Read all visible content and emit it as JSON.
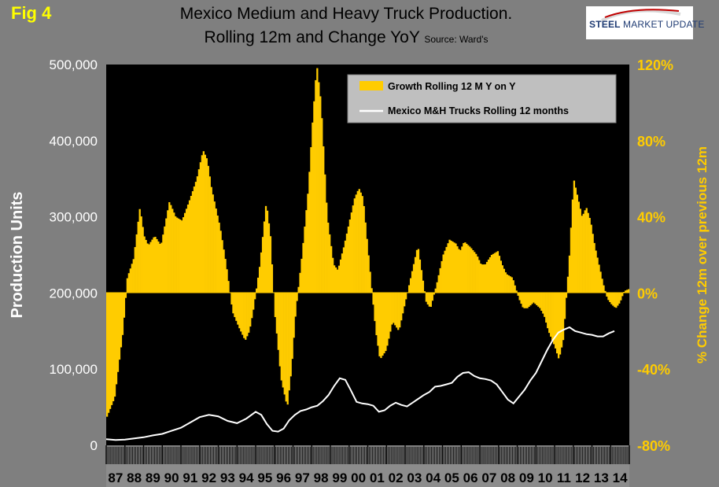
{
  "figure_label": "Fig 4",
  "title_line1": "Mexico Medium and Heavy Truck Production.",
  "title_line2": "Rolling 12m and Change YoY",
  "source": "Source: Ward's",
  "logo": {
    "bold": "STEEL",
    "rest": "MARKET UPDATE"
  },
  "colors": {
    "bars": "#ffcc00",
    "line": "#ffffff",
    "plot_bg": "#000000",
    "page_bg": "#7f7f7f",
    "right_axis_text": "#ffcc00",
    "left_axis_text": "#ffffff"
  },
  "chart_data": {
    "type": "bar+line",
    "ylabel_left": "Production Units",
    "ylabel_right": "% Change 12m over previous 12m",
    "ylim_left": [
      0,
      500000
    ],
    "ylim_right": [
      -80,
      120
    ],
    "left_ticks": [
      "0",
      "100,000",
      "200,000",
      "300,000",
      "400,000",
      "500,000"
    ],
    "right_ticks": [
      "-80%",
      "-40%",
      "0%",
      "40%",
      "80%",
      "120%"
    ],
    "x_tick_labels": [
      "87",
      "88",
      "89",
      "90",
      "91",
      "92",
      "93",
      "94",
      "95",
      "96",
      "97",
      "98",
      "99",
      "00",
      "01",
      "02",
      "03",
      "04",
      "05",
      "06",
      "07",
      "08",
      "09",
      "10",
      "11",
      "12",
      "13",
      "14"
    ],
    "legend": {
      "position": "top-right",
      "bars_label": "Growth Rolling 12 M Y on Y",
      "line_label": "Mexico M&H Trucks Rolling 12 months"
    },
    "growth_pct": [
      [
        1987.0,
        -66
      ],
      [
        1987.4,
        -55
      ],
      [
        1987.8,
        -20
      ],
      [
        1988.0,
        8
      ],
      [
        1988.3,
        18
      ],
      [
        1988.6,
        45
      ],
      [
        1988.8,
        30
      ],
      [
        1989.0,
        25
      ],
      [
        1989.3,
        30
      ],
      [
        1989.6,
        25
      ],
      [
        1990.0,
        48
      ],
      [
        1990.3,
        40
      ],
      [
        1990.6,
        38
      ],
      [
        1991.0,
        50
      ],
      [
        1991.3,
        60
      ],
      [
        1991.6,
        75
      ],
      [
        1991.8,
        70
      ],
      [
        1992.0,
        55
      ],
      [
        1992.4,
        35
      ],
      [
        1992.7,
        15
      ],
      [
        1993.0,
        -10
      ],
      [
        1993.3,
        -18
      ],
      [
        1993.6,
        -25
      ],
      [
        1993.8,
        -20
      ],
      [
        1994.0,
        -8
      ],
      [
        1994.3,
        15
      ],
      [
        1994.6,
        48
      ],
      [
        1994.8,
        30
      ],
      [
        1995.0,
        -10
      ],
      [
        1995.3,
        -45
      ],
      [
        1995.6,
        -60
      ],
      [
        1995.8,
        -40
      ],
      [
        1996.0,
        -10
      ],
      [
        1996.3,
        20
      ],
      [
        1996.6,
        55
      ],
      [
        1996.8,
        90
      ],
      [
        1997.0,
        120
      ],
      [
        1997.2,
        100
      ],
      [
        1997.5,
        40
      ],
      [
        1997.8,
        15
      ],
      [
        1998.0,
        12
      ],
      [
        1998.3,
        25
      ],
      [
        1998.6,
        40
      ],
      [
        1998.8,
        50
      ],
      [
        1999.0,
        55
      ],
      [
        1999.2,
        50
      ],
      [
        1999.5,
        15
      ],
      [
        1999.8,
        -20
      ],
      [
        2000.0,
        -35
      ],
      [
        2000.3,
        -30
      ],
      [
        2000.6,
        -15
      ],
      [
        2000.9,
        -20
      ],
      [
        2001.0,
        -15
      ],
      [
        2001.3,
        0
      ],
      [
        2001.6,
        15
      ],
      [
        2001.8,
        25
      ],
      [
        2002.0,
        10
      ],
      [
        2002.2,
        -5
      ],
      [
        2002.4,
        -8
      ],
      [
        2002.7,
        5
      ],
      [
        2003.0,
        20
      ],
      [
        2003.3,
        28
      ],
      [
        2003.6,
        26
      ],
      [
        2003.8,
        22
      ],
      [
        2004.0,
        27
      ],
      [
        2004.3,
        24
      ],
      [
        2004.6,
        20
      ],
      [
        2004.8,
        15
      ],
      [
        2005.0,
        15
      ],
      [
        2005.3,
        20
      ],
      [
        2005.6,
        22
      ],
      [
        2005.8,
        15
      ],
      [
        2006.0,
        10
      ],
      [
        2006.3,
        8
      ],
      [
        2006.6,
        -3
      ],
      [
        2006.8,
        -8
      ],
      [
        2007.0,
        -8
      ],
      [
        2007.3,
        -5
      ],
      [
        2007.6,
        -8
      ],
      [
        2007.8,
        -12
      ],
      [
        2008.0,
        -20
      ],
      [
        2008.3,
        -28
      ],
      [
        2008.5,
        -35
      ],
      [
        2008.7,
        -25
      ],
      [
        2008.9,
        5
      ],
      [
        2009.0,
        20
      ],
      [
        2009.2,
        60
      ],
      [
        2009.4,
        50
      ],
      [
        2009.6,
        40
      ],
      [
        2009.8,
        45
      ],
      [
        2010.0,
        38
      ],
      [
        2010.2,
        25
      ],
      [
        2010.4,
        15
      ],
      [
        2010.6,
        5
      ],
      [
        2010.8,
        -3
      ],
      [
        2011.0,
        -6
      ],
      [
        2011.2,
        -8
      ],
      [
        2011.4,
        -5
      ],
      [
        2011.6,
        1
      ],
      [
        2011.8,
        2
      ]
    ],
    "production_units": [
      [
        1987.0,
        8000
      ],
      [
        1987.5,
        7000
      ],
      [
        1988.0,
        7500
      ],
      [
        1988.5,
        9000
      ],
      [
        1989.0,
        10500
      ],
      [
        1989.5,
        13000
      ],
      [
        1990.0,
        15000
      ],
      [
        1990.5,
        19000
      ],
      [
        1991.0,
        23000
      ],
      [
        1991.5,
        30000
      ],
      [
        1992.0,
        37000
      ],
      [
        1992.5,
        40000
      ],
      [
        1993.0,
        38000
      ],
      [
        1993.5,
        32000
      ],
      [
        1994.0,
        29000
      ],
      [
        1994.5,
        35000
      ],
      [
        1995.0,
        44000
      ],
      [
        1995.3,
        40000
      ],
      [
        1995.6,
        28000
      ],
      [
        1995.9,
        19000
      ],
      [
        1996.2,
        18000
      ],
      [
        1996.5,
        22000
      ],
      [
        1996.8,
        33000
      ],
      [
        1997.1,
        40000
      ],
      [
        1997.4,
        45000
      ],
      [
        1997.7,
        47000
      ],
      [
        1998.0,
        50000
      ],
      [
        1998.3,
        52000
      ],
      [
        1998.6,
        58000
      ],
      [
        1998.9,
        66000
      ],
      [
        1999.2,
        78000
      ],
      [
        1999.5,
        88000
      ],
      [
        1999.8,
        86000
      ],
      [
        2000.1,
        72000
      ],
      [
        2000.4,
        57000
      ],
      [
        2000.7,
        55000
      ],
      [
        2001.0,
        54000
      ],
      [
        2001.3,
        52000
      ],
      [
        2001.6,
        44000
      ],
      [
        2001.9,
        46000
      ],
      [
        2002.2,
        52000
      ],
      [
        2002.5,
        56000
      ],
      [
        2002.8,
        53000
      ],
      [
        2003.1,
        51000
      ],
      [
        2003.4,
        56000
      ],
      [
        2003.7,
        61000
      ],
      [
        2004.0,
        66000
      ],
      [
        2004.3,
        70000
      ],
      [
        2004.6,
        77000
      ],
      [
        2004.9,
        78000
      ],
      [
        2005.2,
        80000
      ],
      [
        2005.5,
        82000
      ],
      [
        2005.8,
        90000
      ],
      [
        2006.1,
        95000
      ],
      [
        2006.4,
        96000
      ],
      [
        2006.7,
        91000
      ],
      [
        2007.0,
        88000
      ],
      [
        2007.3,
        87000
      ],
      [
        2007.6,
        85000
      ],
      [
        2007.9,
        80000
      ],
      [
        2008.2,
        70000
      ],
      [
        2008.5,
        60000
      ],
      [
        2008.8,
        55000
      ],
      [
        2009.1,
        64000
      ],
      [
        2009.4,
        73000
      ],
      [
        2009.7,
        85000
      ],
      [
        2010.0,
        95000
      ],
      [
        2010.3,
        110000
      ],
      [
        2010.6,
        125000
      ],
      [
        2010.9,
        138000
      ],
      [
        2011.2,
        148000
      ],
      [
        2011.5,
        152000
      ],
      [
        2011.8,
        155000
      ],
      [
        2012.1,
        150000
      ],
      [
        2012.4,
        148000
      ],
      [
        2012.7,
        146000
      ],
      [
        2013.0,
        145000
      ],
      [
        2013.3,
        143000
      ],
      [
        2013.6,
        143000
      ],
      [
        2013.9,
        147000
      ],
      [
        2014.2,
        150000
      ]
    ]
  }
}
